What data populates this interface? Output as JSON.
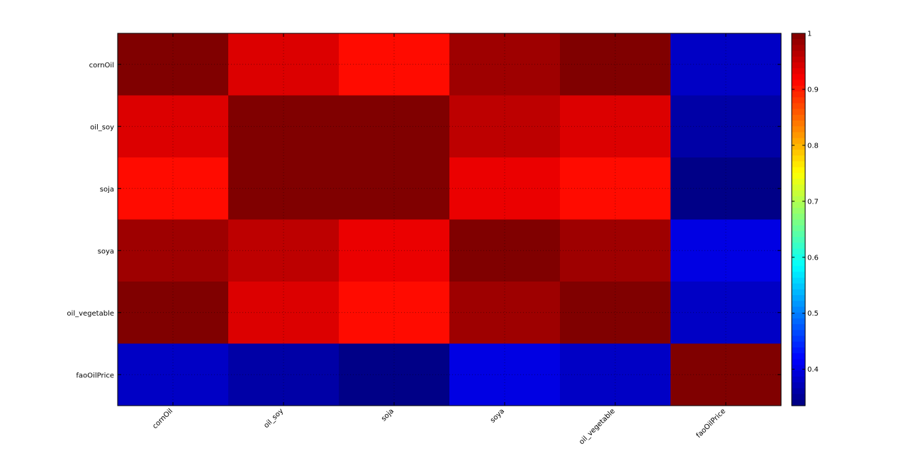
{
  "chart_data": {
    "type": "heatmap",
    "title": "",
    "xlabel": "",
    "ylabel": "",
    "row_labels": [
      "cornOil",
      "oil_soy",
      "soja",
      "soya",
      "oil_vegetable",
      "faoOilPrice"
    ],
    "col_labels": [
      "cornOil",
      "oil_soy",
      "soja",
      "soya",
      "oil_vegetable",
      "faoOilPrice"
    ],
    "values": [
      [
        1.0,
        0.94,
        0.91,
        0.98,
        1.0,
        0.38
      ],
      [
        0.94,
        1.0,
        1.0,
        0.96,
        0.94,
        0.36
      ],
      [
        0.91,
        1.0,
        1.0,
        0.93,
        0.91,
        0.34
      ],
      [
        0.98,
        0.96,
        0.93,
        1.0,
        0.98,
        0.4
      ],
      [
        1.0,
        0.94,
        0.91,
        0.98,
        1.0,
        0.38
      ],
      [
        0.38,
        0.36,
        0.34,
        0.4,
        0.38,
        1.0
      ]
    ],
    "colormap": "jet",
    "clim": [
      0.335,
      1.0
    ],
    "gridlines": "dotted",
    "colorbar": {
      "ticks": [
        0.4,
        0.5,
        0.6,
        0.7,
        0.8,
        0.9,
        1
      ],
      "tick_labels": [
        "0.4",
        "0.5",
        "0.6",
        "0.7",
        "0.8",
        "0.9",
        "1"
      ],
      "placement": "right"
    }
  }
}
